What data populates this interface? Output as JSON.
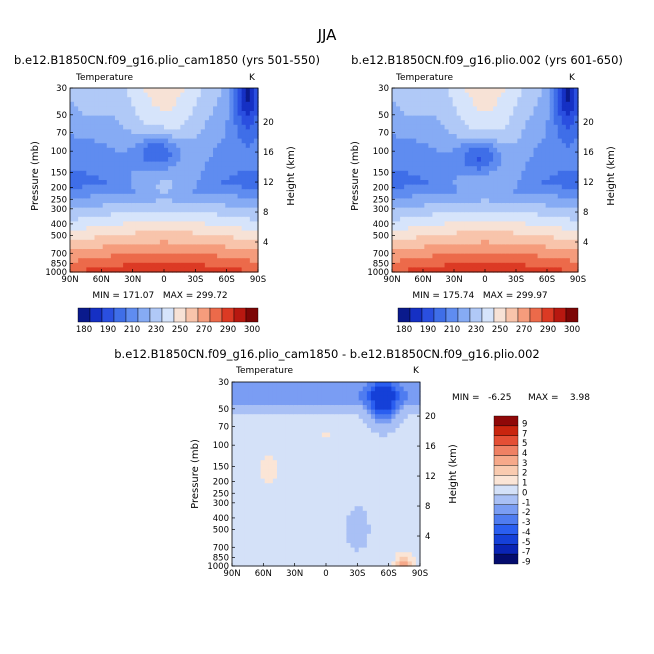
{
  "figure": {
    "season": "JJA",
    "panels": [
      {
        "title": "b.e12.B1850CN.f09_g16.plio_cam1850 (yrs 501-550)",
        "field": "Temperature",
        "units": "K",
        "ylabel": "Pressure (mb)",
        "ylabel_right": "Height (km)",
        "stats": "MIN = 171.07   MAX = 299.72"
      },
      {
        "title": "b.e12.B1850CN.f09_g16.plio.002 (yrs 601-650)",
        "field": "Temperature",
        "units": "K",
        "ylabel": "Pressure (mb)",
        "ylabel_right": "Height (km)",
        "stats": "MIN = 175.74   MAX = 299.97"
      },
      {
        "title": "b.e12.B1850CN.f09_g16.plio_cam1850 - b.e12.B1850CN.f09_g16.plio.002",
        "field": "Temperature",
        "units": "K",
        "ylabel": "Pressure (mb)",
        "ylabel_right": "Height (km)",
        "stats_min": "MIN =   -6.25",
        "stats_max": "MAX =    3.98"
      }
    ]
  },
  "chart_data": [
    {
      "type": "heatmap",
      "title": "b.e12.B1850CN.f09_g16.plio_cam1850 (yrs 501-550)",
      "subtitle": "Temperature",
      "units": "K",
      "ylabel": "Pressure (mb)",
      "ylabel_right": "Height (km)",
      "x_ticks": [
        "90N",
        "60N",
        "30N",
        "0",
        "30S",
        "60S",
        "90S"
      ],
      "y_ticks": [
        "30",
        "50",
        "70",
        "100",
        "150",
        "200",
        "250",
        "300",
        "400",
        "500",
        "700",
        "850",
        "1000"
      ],
      "y_ticks_right": [
        "20",
        "16",
        "12",
        "8",
        "4"
      ],
      "y_scale": "log",
      "y_reversed": true,
      "min": 171.07,
      "max": 299.72,
      "colorbar_levels": [
        "180",
        "190",
        "200",
        "210",
        "220",
        "230",
        "240",
        "250",
        "260",
        "270",
        "280",
        "290",
        "300"
      ],
      "colorbar_labels": [
        "180",
        "190",
        "210",
        "230",
        "250",
        "270",
        "290",
        "300"
      ],
      "colorbar_orientation": "horizontal"
    },
    {
      "type": "heatmap",
      "title": "b.e12.B1850CN.f09_g16.plio.002 (yrs 601-650)",
      "subtitle": "Temperature",
      "units": "K",
      "ylabel": "Pressure (mb)",
      "ylabel_right": "Height (km)",
      "x_ticks": [
        "90N",
        "60N",
        "30N",
        "0",
        "30S",
        "60S",
        "90S"
      ],
      "y_ticks": [
        "30",
        "50",
        "70",
        "100",
        "150",
        "200",
        "250",
        "300",
        "400",
        "500",
        "700",
        "850",
        "1000"
      ],
      "y_ticks_right": [
        "20",
        "16",
        "12",
        "8",
        "4"
      ],
      "y_scale": "log",
      "y_reversed": true,
      "min": 175.74,
      "max": 299.97,
      "colorbar_levels": [
        "180",
        "190",
        "200",
        "210",
        "220",
        "230",
        "240",
        "250",
        "260",
        "270",
        "280",
        "290",
        "300"
      ],
      "colorbar_labels": [
        "180",
        "190",
        "210",
        "230",
        "250",
        "270",
        "290",
        "300"
      ],
      "colorbar_orientation": "horizontal"
    },
    {
      "type": "heatmap",
      "title": "b.e12.B1850CN.f09_g16.plio_cam1850 - b.e12.B1850CN.f09_g16.plio.002",
      "subtitle": "Temperature",
      "units": "K",
      "ylabel": "Pressure (mb)",
      "ylabel_right": "Height (km)",
      "x_ticks": [
        "90N",
        "60N",
        "30N",
        "0",
        "30S",
        "60S",
        "90S"
      ],
      "y_ticks": [
        "30",
        "50",
        "70",
        "100",
        "150",
        "200",
        "250",
        "300",
        "400",
        "500",
        "700",
        "850",
        "1000"
      ],
      "y_ticks_right": [
        "20",
        "16",
        "12",
        "8",
        "4"
      ],
      "y_scale": "log",
      "y_reversed": true,
      "min": -6.25,
      "max": 3.98,
      "colorbar_labels": [
        "9",
        "7",
        "5",
        "4",
        "3",
        "2",
        "1",
        "0",
        "-1",
        "-2",
        "-3",
        "-4",
        "-5",
        "-7",
        "-9"
      ],
      "colorbar_orientation": "vertical"
    }
  ],
  "colors": {
    "abs_palette": [
      "#0a1a8c",
      "#1530c4",
      "#2a4fe0",
      "#3f6ee8",
      "#5f8cf0",
      "#86abf4",
      "#b0c9f7",
      "#d6e4fb",
      "#f7e2d6",
      "#f8c4ab",
      "#f59c7c",
      "#ec6a4a",
      "#dc3a24",
      "#b81810",
      "#7d0606"
    ],
    "diff_palette": [
      "#040c6e",
      "#0a24b4",
      "#1540d8",
      "#2a5ef0",
      "#4f7cf0",
      "#7a9df3",
      "#a9c0f5",
      "#d4e1f8",
      "#fbe5d6",
      "#f9cbb0",
      "#f6a98a",
      "#ef8164",
      "#e44f35",
      "#c9250f",
      "#8f0808"
    ]
  }
}
